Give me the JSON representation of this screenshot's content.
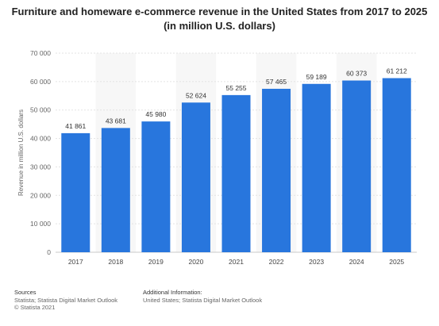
{
  "title": {
    "line1": "Furniture and homeware e-commerce revenue in the United States from 2017 to 2025",
    "line2": "(in million U.S. dollars)"
  },
  "chart_data": {
    "type": "bar",
    "categories": [
      "2017",
      "2018",
      "2019",
      "2020",
      "2021",
      "2022",
      "2023",
      "2024",
      "2025"
    ],
    "values": [
      41861,
      43681,
      45980,
      52624,
      55255,
      57465,
      59189,
      60373,
      61212
    ],
    "value_labels": [
      "41 861",
      "43 681",
      "45 980",
      "52 624",
      "55 255",
      "57 465",
      "59 189",
      "60 373",
      "61 212"
    ],
    "ylabel": "Revenue in million U.S. dollars",
    "xlabel": "",
    "ylim": [
      0,
      70000
    ],
    "yticks": [
      0,
      10000,
      20000,
      30000,
      40000,
      50000,
      60000,
      70000
    ],
    "ytick_labels": [
      "0",
      "10 000",
      "20 000",
      "30 000",
      "40 000",
      "50 000",
      "60 000",
      "70 000"
    ],
    "grid": true,
    "bar_color": "#2876dd"
  },
  "footer": {
    "sources_head": "Sources",
    "sources_line1": "Statista; Statista Digital Market Outlook",
    "sources_line2": "© Statista 2021",
    "info_head": "Additional Information:",
    "info_line1": "United States; Statista Digital Market Outlook"
  }
}
